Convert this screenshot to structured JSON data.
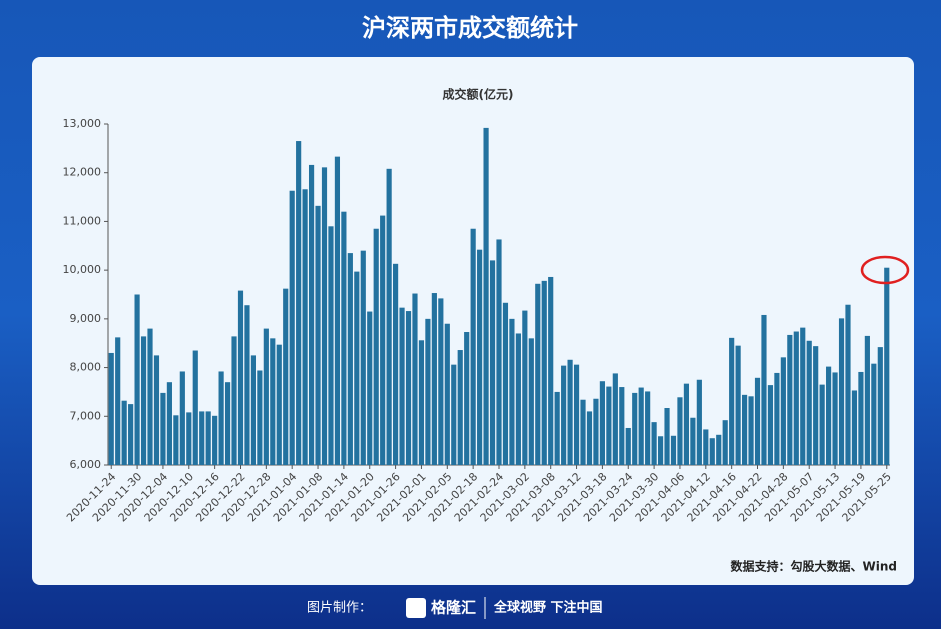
{
  "chart_data": {
    "type": "bar",
    "title": "沪深两市成交额统计",
    "subtitle": "成交额(亿元)",
    "source": "数据支持：勾股大数据、Wind",
    "color": "#23729f",
    "grid": false,
    "ylim": [
      6000,
      13000
    ],
    "yticks": [
      {
        "value": 6000,
        "label": "6,000"
      },
      {
        "value": 7000,
        "label": "7,000"
      },
      {
        "value": 8000,
        "label": "8,000"
      },
      {
        "value": 9000,
        "label": "9,000"
      },
      {
        "value": 10000,
        "label": "10,000"
      },
      {
        "value": 11000,
        "label": "11,000"
      },
      {
        "value": 12000,
        "label": "12,000"
      },
      {
        "value": 13000,
        "label": "13,000"
      }
    ],
    "categories": [
      "2020-11-24",
      null,
      null,
      null,
      "2020-11-30",
      null,
      null,
      null,
      "2020-12-04",
      null,
      null,
      null,
      "2020-12-10",
      null,
      null,
      null,
      "2020-12-16",
      null,
      null,
      null,
      "2020-12-22",
      null,
      null,
      null,
      "2020-12-28",
      null,
      null,
      null,
      "2021-01-04",
      null,
      null,
      null,
      "2021-01-08",
      null,
      null,
      null,
      "2021-01-14",
      null,
      null,
      null,
      "2021-01-20",
      null,
      null,
      null,
      "2021-01-26",
      null,
      null,
      null,
      "2021-02-01",
      null,
      null,
      null,
      "2021-02-05",
      null,
      null,
      null,
      "2021-02-18",
      null,
      null,
      null,
      "2021-02-24",
      null,
      null,
      null,
      "2021-03-02",
      null,
      null,
      null,
      "2021-03-08",
      null,
      null,
      null,
      "2021-03-12",
      null,
      null,
      null,
      "2021-03-18",
      null,
      null,
      null,
      "2021-03-24",
      null,
      null,
      null,
      "2021-03-30",
      null,
      null,
      null,
      "2021-04-06",
      null,
      null,
      null,
      "2021-04-12",
      null,
      null,
      null,
      "2021-04-16",
      null,
      null,
      null,
      "2021-04-22",
      null,
      null,
      null,
      "2021-04-28",
      null,
      null,
      null,
      "2021-05-07",
      null,
      null,
      null,
      "2021-05-13",
      null,
      null,
      null,
      "2021-05-19",
      null,
      null,
      null,
      "2021-05-25"
    ],
    "values": [
      8300,
      8620,
      7320,
      7250,
      9500,
      8640,
      8800,
      8250,
      7480,
      7700,
      7020,
      7920,
      7080,
      8350,
      7100,
      7100,
      7010,
      7920,
      7700,
      8640,
      9580,
      9280,
      8250,
      7940,
      8800,
      8600,
      8470,
      9620,
      11630,
      12650,
      11660,
      12160,
      11320,
      12110,
      10900,
      12330,
      11200,
      10350,
      9970,
      10400,
      9150,
      10850,
      11120,
      12080,
      10130,
      9230,
      9160,
      9520,
      8560,
      9000,
      9530,
      9420,
      8900,
      8060,
      8360,
      8730,
      10850,
      10420,
      12920,
      10200,
      10630,
      9330,
      9000,
      8700,
      9170,
      8600,
      9720,
      9780,
      9860,
      7500,
      8040,
      8160,
      8060,
      7340,
      7100,
      7360,
      7720,
      7610,
      7880,
      7600,
      6760,
      7480,
      7590,
      7510,
      6880,
      6590,
      7170,
      6600,
      7390,
      7670,
      6970,
      7750,
      6730,
      6550,
      6620,
      6920,
      8610,
      8450,
      7440,
      7410,
      7790,
      9080,
      7640,
      7890,
      8210,
      8670,
      8740,
      8820,
      8550,
      8440,
      7650,
      8020,
      7900,
      9010,
      9290,
      7530,
      7910,
      8650,
      8080,
      8420,
      10050
    ]
  },
  "footer": {
    "label": "图片制作：",
    "brand": "格隆汇",
    "slogan": "全球视野 下注中国"
  }
}
